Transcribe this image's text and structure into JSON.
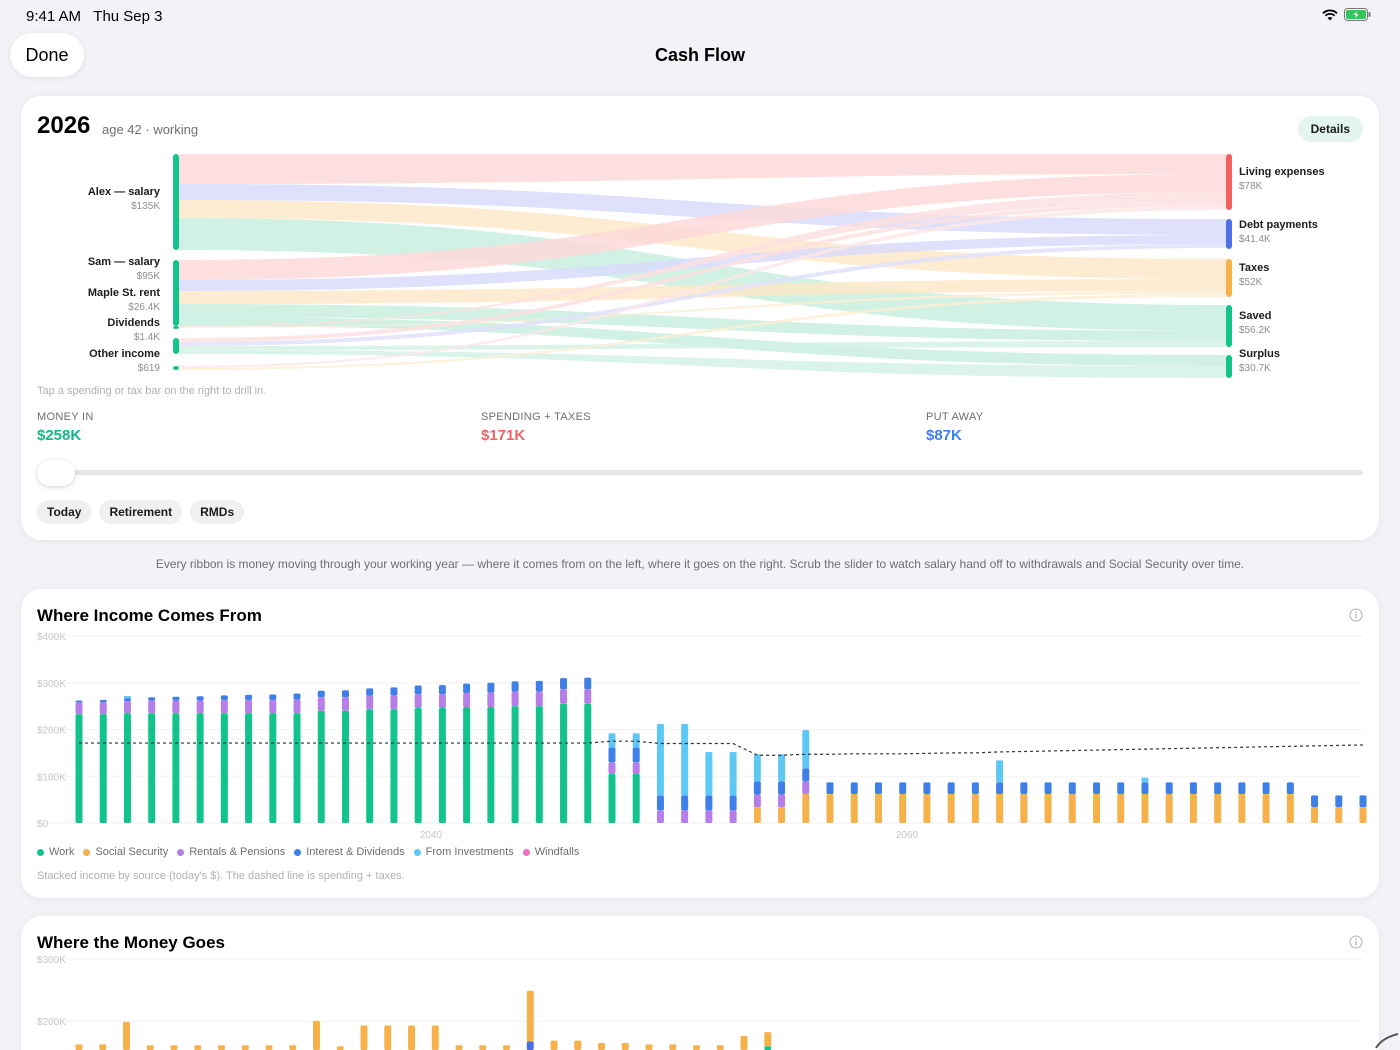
{
  "status": {
    "time": "9:41 AM",
    "date": "Thu Sep 3"
  },
  "nav": {
    "title": "Cash Flow",
    "done_label": "Done"
  },
  "summary": {
    "year": "2026",
    "subtitle": "age 42 · working",
    "details_label": "Details",
    "hint": "Tap a spending or tax bar on the right to drill in.",
    "sources": [
      {
        "label": "Alex — salary",
        "value": "$135K",
        "color": "#12c48b"
      },
      {
        "label": "Sam — salary",
        "value": "$95K",
        "color": "#12c48b"
      },
      {
        "label": "Maple St. rent",
        "value": "$26.4K",
        "color": "#12c48b"
      },
      {
        "label": "Dividends",
        "value": "$1.4K",
        "color": "#12c48b"
      },
      {
        "label": "Other income",
        "value": "$619",
        "color": "#12c48b"
      }
    ],
    "destinations": [
      {
        "label": "Living expenses",
        "value": "$78K",
        "color": "#f26060"
      },
      {
        "label": "Debt payments",
        "value": "$41.4K",
        "color": "#4c6fe8"
      },
      {
        "label": "Taxes",
        "value": "$52K",
        "color": "#f6b14a"
      },
      {
        "label": "Saved",
        "value": "$56.2K",
        "color": "#12c48b"
      },
      {
        "label": "Surplus",
        "value": "$30.7K",
        "color": "#12c48b"
      }
    ],
    "stats": [
      {
        "label": "MONEY IN",
        "value": "$258K",
        "color": "#12b886"
      },
      {
        "label": "SPENDING + TAXES",
        "value": "$171K",
        "color": "#f06262"
      },
      {
        "label": "PUT AWAY",
        "value": "$87K",
        "color": "#3b82f6"
      }
    ],
    "slider_position": 0,
    "chips": [
      "Today",
      "Retirement",
      "RMDs"
    ]
  },
  "caption": "Every ribbon is money moving through your working year — where it comes from on the left, where it goes on the right. Scrub the slider to watch salary hand off to withdrawals and Social Security over time.",
  "income_card": {
    "title": "Where Income Comes From",
    "note": "Stacked income by source (today's $). The dashed line is spending + taxes.",
    "icons": {
      "info": "info-icon"
    }
  },
  "spend_card": {
    "title": "Where the Money Goes"
  },
  "chart_data": [
    {
      "type": "bar",
      "stacked": true,
      "x_start": 2026,
      "x_ticks": [
        "2040",
        "2060"
      ],
      "y_ticks": [
        "$0",
        "$100K",
        "$200K",
        "$300K",
        "$400K"
      ],
      "ylim": [
        0,
        400000
      ],
      "colors": {
        "Work": "#12c48b",
        "Social Security": "#f6b14a",
        "Rentals & Pensions": "#b57ee8",
        "Interest & Dividends": "#3f7fe8",
        "From Investments": "#5ec8f5",
        "Windfalls": "#f06fc0"
      },
      "series": [
        {
          "name": "Work",
          "values": [
            233,
            233,
            235,
            235,
            235,
            235,
            235,
            235,
            235,
            235,
            240,
            240,
            243,
            243,
            246,
            246,
            248,
            248,
            250,
            250,
            255,
            255,
            105,
            105,
            0,
            0,
            0,
            0,
            0,
            0,
            0,
            0,
            0,
            0,
            0,
            0,
            0,
            0,
            0,
            0,
            0,
            0,
            0,
            0,
            0,
            0,
            0,
            0,
            0,
            0,
            0,
            0,
            0,
            0
          ]
        },
        {
          "name": "Social Security",
          "values": [
            0,
            0,
            0,
            0,
            0,
            0,
            0,
            0,
            0,
            0,
            0,
            0,
            0,
            0,
            0,
            0,
            0,
            0,
            0,
            0,
            0,
            0,
            0,
            0,
            0,
            0,
            0,
            0,
            34,
            34,
            62,
            62,
            62,
            62,
            62,
            62,
            62,
            62,
            62,
            62,
            62,
            62,
            62,
            62,
            62,
            62,
            62,
            62,
            62,
            62,
            62,
            34,
            34,
            34
          ]
        },
        {
          "name": "Rentals & Pensions",
          "values": [
            25,
            25,
            26,
            27,
            27,
            27,
            28,
            28,
            28,
            29,
            29,
            29,
            29,
            30,
            30,
            30,
            30,
            31,
            31,
            31,
            31,
            31,
            25,
            25,
            27,
            27,
            27,
            27,
            27,
            27,
            27,
            0,
            0,
            0,
            0,
            0,
            0,
            0,
            0,
            0,
            0,
            0,
            0,
            0,
            0,
            0,
            0,
            0,
            0,
            0,
            0,
            0,
            0,
            0
          ]
        },
        {
          "name": "Interest & Dividends",
          "values": [
            4,
            5,
            6,
            7,
            8,
            9,
            10,
            11,
            12,
            13,
            14,
            15,
            16,
            17,
            18,
            19,
            20,
            21,
            22,
            23,
            24,
            25,
            32,
            32,
            32,
            32,
            32,
            32,
            28,
            28,
            28,
            25,
            25,
            25,
            25,
            25,
            25,
            25,
            25,
            25,
            25,
            25,
            25,
            25,
            25,
            25,
            25,
            25,
            25,
            25,
            25,
            25,
            25,
            25
          ]
        },
        {
          "name": "From Investments",
          "values": [
            0,
            0,
            5,
            0,
            0,
            0,
            0,
            0,
            0,
            0,
            0,
            0,
            0,
            0,
            0,
            0,
            0,
            0,
            0,
            0,
            0,
            0,
            30,
            30,
            153,
            153,
            93,
            93,
            58,
            58,
            82,
            0,
            0,
            0,
            0,
            0,
            0,
            0,
            47,
            0,
            0,
            0,
            0,
            0,
            10,
            0,
            0,
            0,
            0,
            0,
            0,
            0,
            0,
            0
          ]
        },
        {
          "name": "Windfalls",
          "values": [
            0,
            0,
            0,
            0,
            0,
            0,
            0,
            0,
            0,
            0,
            0,
            0,
            0,
            0,
            0,
            0,
            0,
            0,
            0,
            0,
            0,
            0,
            0,
            0,
            0,
            0,
            0,
            0,
            0,
            0,
            0,
            0,
            0,
            0,
            0,
            0,
            0,
            0,
            0,
            0,
            0,
            0,
            0,
            0,
            0,
            0,
            0,
            0,
            0,
            0,
            0,
            0,
            0,
            0
          ]
        },
        {
          "name": "Spending + taxes",
          "line": true,
          "values": [
            171,
            171,
            171,
            171,
            171,
            171,
            171,
            171,
            171,
            171,
            171,
            171,
            171,
            171,
            171,
            171,
            171,
            171,
            171,
            171,
            171,
            171,
            175,
            175,
            170,
            170,
            170,
            170,
            145,
            145,
            147,
            147,
            148,
            148,
            148,
            149,
            150,
            150,
            152,
            153,
            154,
            155,
            156,
            157,
            158,
            159,
            160,
            161,
            162,
            163,
            164,
            165,
            166,
            167
          ]
        }
      ]
    },
    {
      "type": "bar",
      "stacked": true,
      "y_ticks": [
        "$200K",
        "$300K"
      ],
      "ylim": [
        0,
        300000
      ],
      "colors": {
        "Spending": "#f6b14a",
        "Debt": "#4c6fe8",
        "Saved": "#12c48b"
      },
      "series": [
        {
          "name": "Spending",
          "values": [
            12,
            12,
            60,
            10,
            10,
            10,
            10,
            10,
            10,
            10,
            62,
            8,
            52,
            52,
            52,
            52,
            10,
            10,
            10,
            108,
            20,
            20,
            15,
            15,
            12,
            12,
            10,
            10,
            30,
            30
          ]
        },
        {
          "name": "Debt",
          "values": [
            0,
            0,
            0,
            0,
            0,
            0,
            0,
            0,
            0,
            0,
            0,
            0,
            0,
            0,
            0,
            0,
            0,
            0,
            0,
            18,
            0,
            0,
            0,
            0,
            0,
            0,
            0,
            0,
            0,
            0
          ]
        },
        {
          "name": "Saved",
          "values": [
            0,
            0,
            0,
            0,
            0,
            0,
            0,
            0,
            0,
            0,
            0,
            0,
            0,
            0,
            0,
            0,
            0,
            0,
            0,
            0,
            0,
            0,
            0,
            0,
            0,
            0,
            0,
            0,
            0,
            8
          ]
        }
      ]
    }
  ]
}
